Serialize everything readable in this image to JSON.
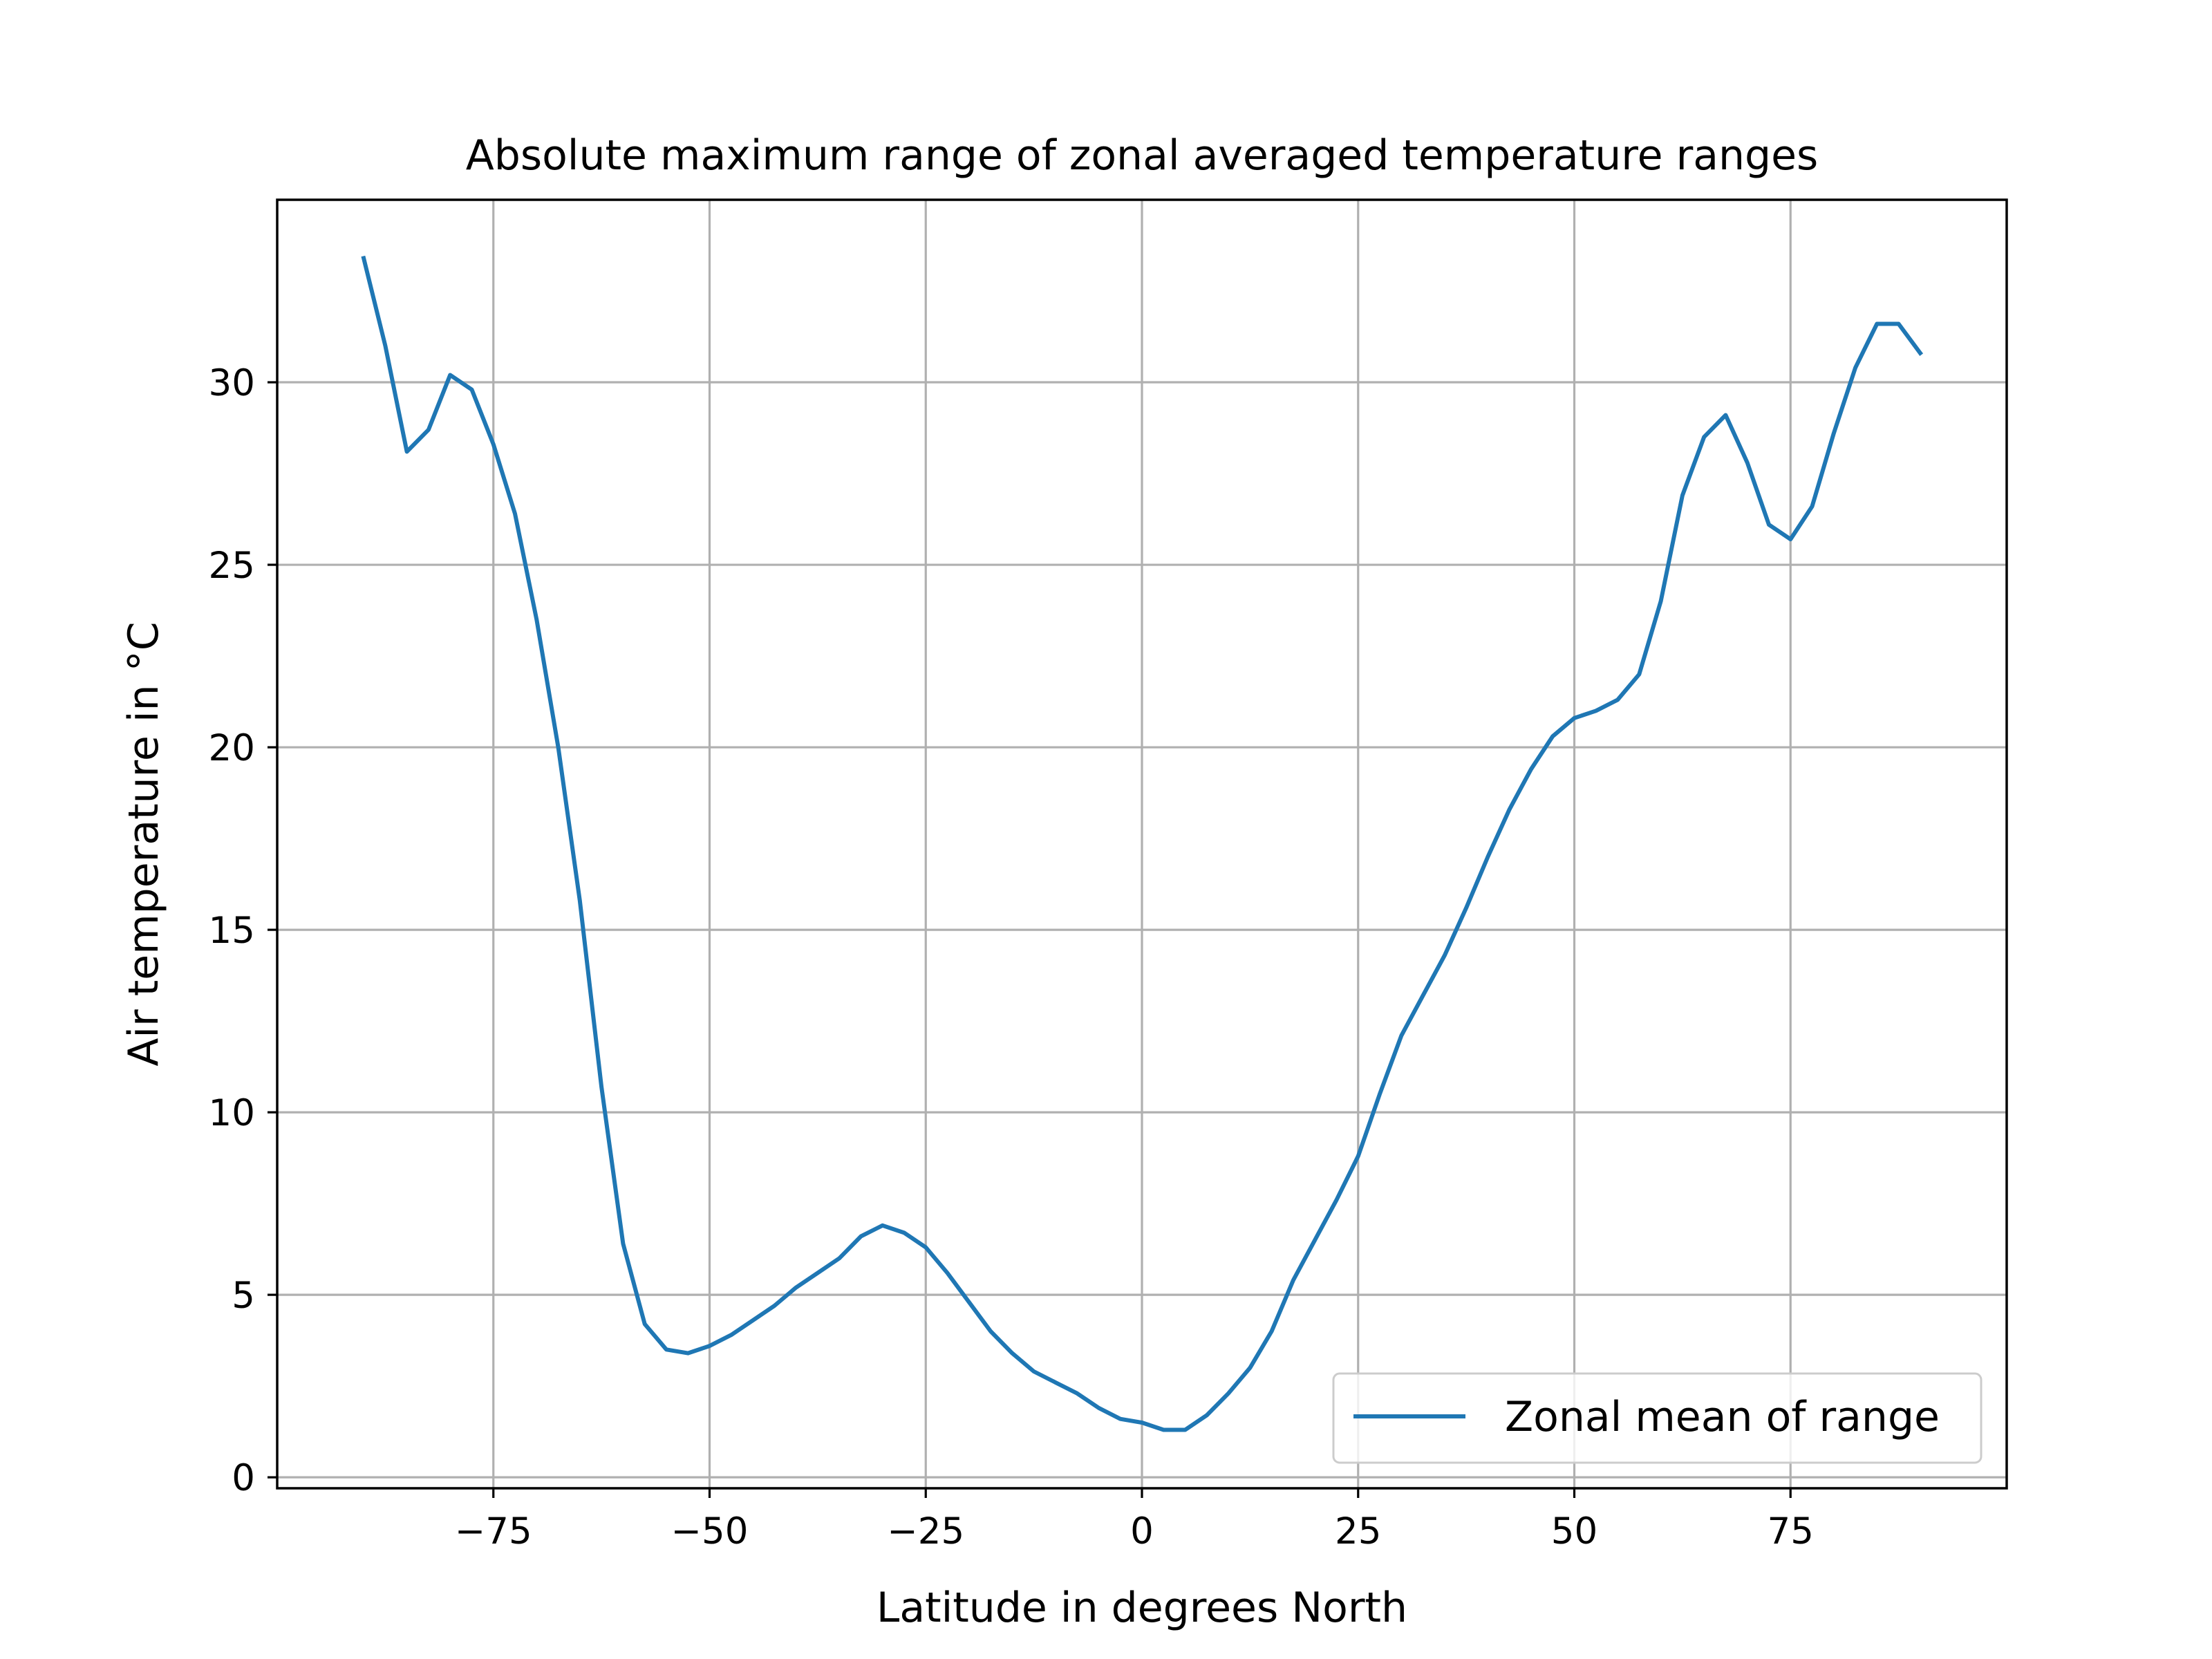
{
  "chart_data": {
    "type": "line",
    "title": "Absolute maximum range of zonal averaged temperature ranges",
    "xlabel": "Latitude in degrees North",
    "ylabel": "Air temperature in °C",
    "xlim": [
      -100,
      100
    ],
    "ylim": [
      -0.3,
      35
    ],
    "xticks": [
      -75,
      -50,
      -25,
      0,
      25,
      50,
      75
    ],
    "xtick_labels": [
      "−75",
      "−50",
      "−25",
      "0",
      "25",
      "50",
      "75"
    ],
    "yticks": [
      0,
      5,
      10,
      15,
      20,
      25,
      30
    ],
    "ytick_labels": [
      "0",
      "5",
      "10",
      "15",
      "20",
      "25",
      "30"
    ],
    "grid": true,
    "legend_position": "lower-right",
    "series": [
      {
        "name": "Zonal mean of range",
        "color": "#1f77b4",
        "x": [
          -90,
          -87.5,
          -85,
          -82.5,
          -80,
          -77.5,
          -75,
          -72.5,
          -70,
          -67.5,
          -65,
          -62.5,
          -60,
          -57.5,
          -55,
          -52.5,
          -50,
          -47.5,
          -45,
          -42.5,
          -40,
          -37.5,
          -35,
          -32.5,
          -30,
          -27.5,
          -25,
          -22.5,
          -20,
          -17.5,
          -15,
          -12.5,
          -10,
          -7.5,
          -5,
          -2.5,
          0,
          2.5,
          5,
          7.5,
          10,
          12.5,
          15,
          17.5,
          20,
          22.5,
          25,
          27.5,
          30,
          32.5,
          35,
          37.5,
          40,
          42.5,
          45,
          47.5,
          50,
          52.5,
          55,
          57.5,
          60,
          62.5,
          65,
          67.5,
          70,
          72.5,
          75,
          77.5,
          80,
          82.5,
          85,
          87.5,
          90
        ],
        "y": [
          33.4,
          31.0,
          28.1,
          28.7,
          30.2,
          29.8,
          28.3,
          26.4,
          23.5,
          20.0,
          15.8,
          10.7,
          6.4,
          4.2,
          3.5,
          3.4,
          3.6,
          3.9,
          4.3,
          4.7,
          5.2,
          5.6,
          6.0,
          6.6,
          6.9,
          6.7,
          6.3,
          5.6,
          4.8,
          4.0,
          3.4,
          2.9,
          2.6,
          2.3,
          1.9,
          1.6,
          1.5,
          1.3,
          1.3,
          1.7,
          2.3,
          3.0,
          4.0,
          5.4,
          6.5,
          7.6,
          8.8,
          10.5,
          12.1,
          13.2,
          14.3,
          15.6,
          17.0,
          18.3,
          19.4,
          20.3,
          20.8,
          21.0,
          21.3,
          22.0,
          24.0,
          26.9,
          28.5,
          29.1,
          27.8,
          26.1,
          25.7,
          26.6,
          28.6,
          30.4,
          31.6,
          31.6,
          30.8
        ]
      }
    ]
  }
}
